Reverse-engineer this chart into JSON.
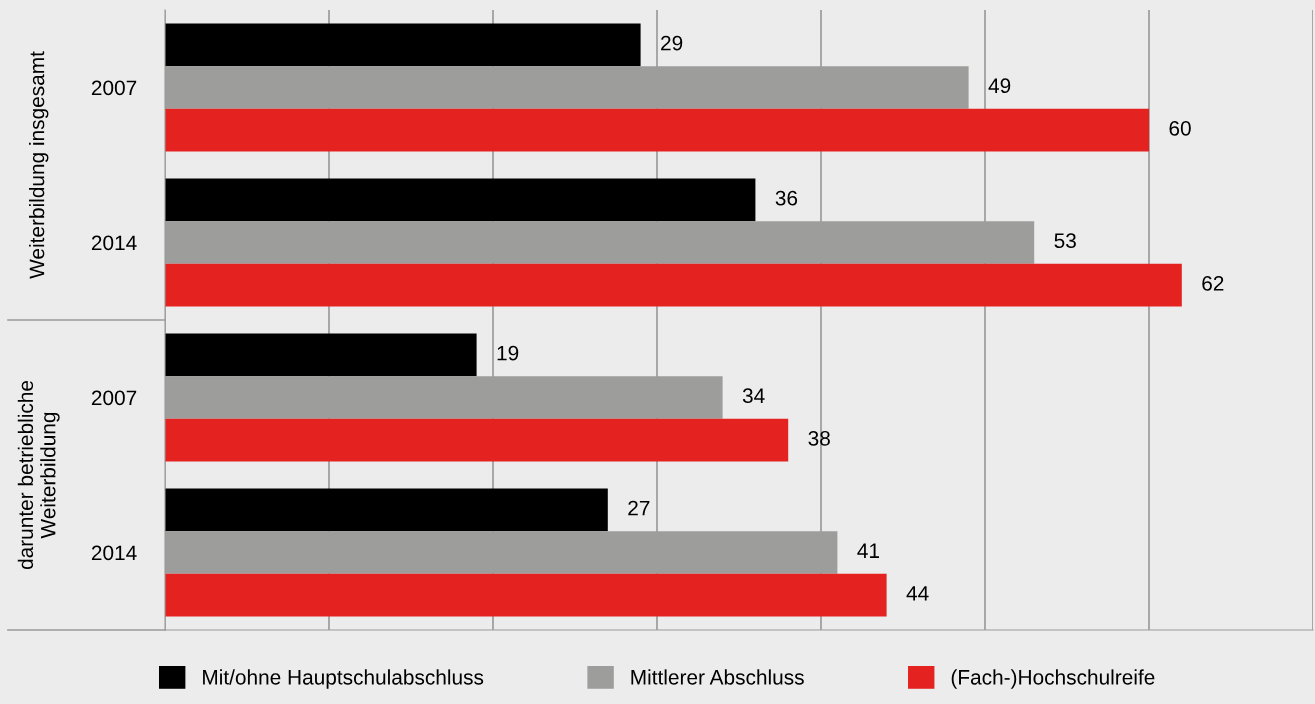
{
  "chart_data": {
    "type": "bar",
    "orientation": "horizontal",
    "categories": [
      "2007",
      "2014",
      "2007",
      "2014"
    ],
    "series": [
      {
        "name": "Mit/ohne Hauptschulabschluss",
        "color": "#000000",
        "values": [
          29,
          36,
          19,
          27
        ]
      },
      {
        "name": "Mittlerer Abschluss",
        "color": "#9d9d9b",
        "values": [
          49,
          53,
          34,
          41
        ]
      },
      {
        "name": "(Fach-)Hochschulreife",
        "color": "#e42320",
        "values": [
          60,
          62,
          38,
          44
        ]
      }
    ],
    "xlim": [
      0,
      70
    ],
    "xticks": [
      {
        "value": 0,
        "label": null
      },
      {
        "value": 10,
        "label": null
      },
      {
        "value": 20,
        "label": null
      },
      {
        "value": 30,
        "label": null
      },
      {
        "value": 40,
        "label": null
      },
      {
        "value": 50,
        "label": null
      },
      {
        "value": 60,
        "label": null
      },
      {
        "value": 70,
        "label": null
      }
    ],
    "annotations": [
      "Weiterbildung insgesamt",
      "darunter betriebliche\nWeiterbildung"
    ],
    "data_labels": true,
    "grid": "x",
    "legend": "bottom",
    "tick_labels": "y"
  }
}
